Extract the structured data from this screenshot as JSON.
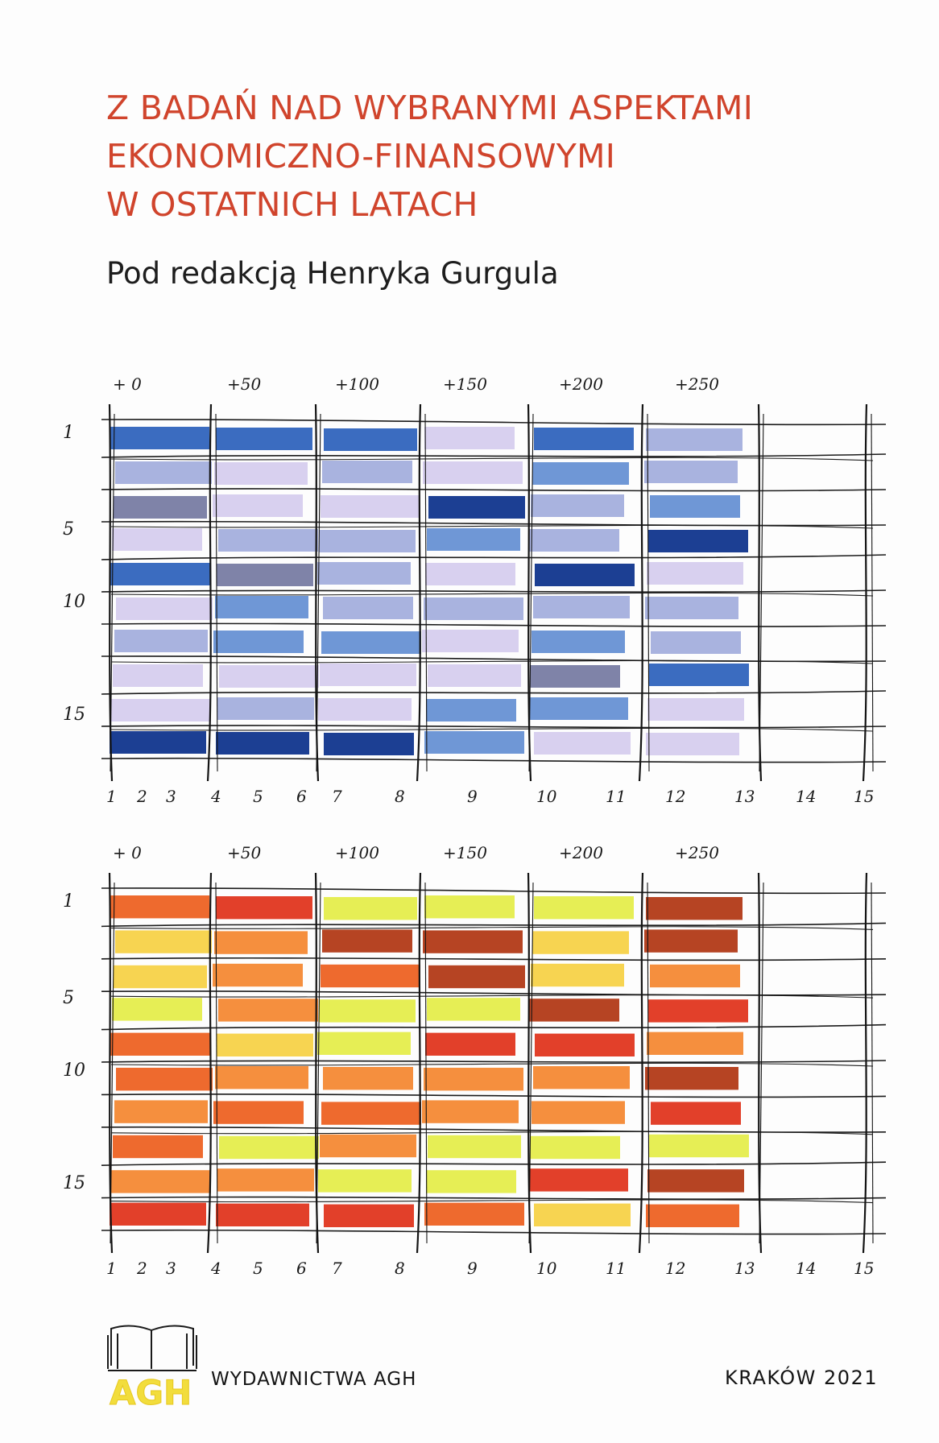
{
  "cover": {
    "title_lines": [
      "Z BADAŃ NAD WYBRANYMI ASPEKTAMI",
      "EKONOMICZNO-FINANSOWYMI",
      "W OSTATNICH LATACH"
    ],
    "editor": "Pod redakcją Henryka Gurgula"
  },
  "colors": {
    "title": "#d0442c",
    "blue_palette": [
      "#d8d0ef",
      "#a9b3df",
      "#6f97d6",
      "#3b6cc0",
      "#1c3f93",
      "#7f83a8"
    ],
    "warm_palette": [
      "#e6ee55",
      "#f7d451",
      "#f58f3e",
      "#ee6a2e",
      "#e2402a",
      "#b64423"
    ]
  },
  "artwork": {
    "top_labels": [
      "+ 0",
      "+50",
      "+100",
      "+150",
      "+200",
      "+250"
    ],
    "row_labels": [
      "1",
      "5",
      "10",
      "15"
    ],
    "bottom_labels": [
      "1",
      "2",
      "3",
      "4",
      "5",
      "6",
      "7",
      "8",
      "9",
      "10",
      "11",
      "12",
      "13",
      "14",
      "15"
    ],
    "blue_rows": [
      [
        3,
        3,
        3,
        0,
        3,
        1
      ],
      [
        1,
        0,
        1,
        0,
        2,
        1
      ],
      [
        5,
        0,
        0,
        4,
        1,
        2
      ],
      [
        0,
        1,
        1,
        2,
        1,
        4
      ],
      [
        3,
        5,
        1,
        0,
        4,
        0
      ],
      [
        0,
        2,
        1,
        1,
        1,
        1
      ],
      [
        1,
        2,
        2,
        0,
        2,
        1
      ],
      [
        0,
        0,
        0,
        0,
        5,
        3
      ],
      [
        0,
        1,
        0,
        2,
        2,
        0
      ],
      [
        4,
        4,
        4,
        2,
        0,
        0
      ]
    ],
    "warm_rows": [
      [
        3,
        4,
        0,
        0,
        0,
        5
      ],
      [
        1,
        2,
        5,
        5,
        1,
        5
      ],
      [
        1,
        2,
        3,
        5,
        1,
        2
      ],
      [
        0,
        2,
        0,
        0,
        5,
        4
      ],
      [
        3,
        1,
        0,
        4,
        4,
        2
      ],
      [
        3,
        2,
        2,
        2,
        2,
        5
      ],
      [
        2,
        3,
        3,
        2,
        2,
        4
      ],
      [
        3,
        0,
        2,
        0,
        0,
        0
      ],
      [
        2,
        2,
        0,
        0,
        4,
        5
      ],
      [
        4,
        4,
        4,
        3,
        1,
        3
      ]
    ]
  },
  "footer": {
    "logo_text": "AGH",
    "publisher": "WYDAWNICTWA AGH",
    "place_year": "KRAKÓW 2021"
  }
}
